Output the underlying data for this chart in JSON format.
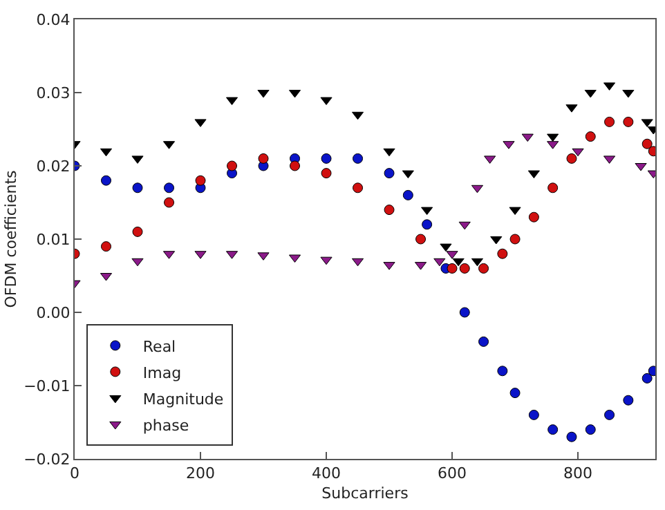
{
  "chart_data": {
    "type": "scatter",
    "xlabel": "Subcarriers",
    "ylabel": "OFDM coefficients",
    "xlim": [
      0,
      923
    ],
    "xticks": [
      0,
      200,
      400,
      600,
      800
    ],
    "ylim": [
      -0.02,
      0.04
    ],
    "yticks": [
      {
        "value": -0.02,
        "label": "−0.02"
      },
      {
        "value": -0.01,
        "label": "−0.01"
      },
      {
        "value": 0,
        "label": "0.00"
      },
      {
        "value": 0.01,
        "label": "0.01"
      },
      {
        "value": 0.02,
        "label": "0.02"
      },
      {
        "value": 0.03,
        "label": "0.03"
      },
      {
        "value": 0.04,
        "label": "0.04"
      }
    ],
    "legend": "bottom left",
    "series": [
      {
        "name": "Real",
        "color": "#0a14c8",
        "marker": "circle",
        "x": [
          0,
          50,
          100,
          150,
          200,
          250,
          300,
          350,
          400,
          450,
          500,
          530,
          560,
          590,
          620,
          650,
          680,
          700,
          730,
          760,
          790,
          820,
          850,
          880,
          910,
          920
        ],
        "values": [
          0.02,
          0.018,
          0.017,
          0.017,
          0.017,
          0.019,
          0.02,
          0.021,
          0.021,
          0.021,
          0.019,
          0.016,
          0.012,
          0.006,
          0.0,
          -0.004,
          -0.008,
          -0.011,
          -0.014,
          -0.016,
          -0.017,
          -0.016,
          -0.014,
          -0.012,
          -0.009,
          -0.008
        ]
      },
      {
        "name": "Imag",
        "color": "#d01010",
        "marker": "circle",
        "x": [
          0,
          50,
          100,
          150,
          200,
          250,
          300,
          350,
          400,
          450,
          500,
          550,
          600,
          620,
          650,
          680,
          700,
          730,
          760,
          790,
          820,
          850,
          880,
          910,
          920
        ],
        "values": [
          0.008,
          0.009,
          0.011,
          0.015,
          0.018,
          0.02,
          0.021,
          0.02,
          0.019,
          0.017,
          0.014,
          0.01,
          0.006,
          0.006,
          0.006,
          0.008,
          0.01,
          0.013,
          0.017,
          0.021,
          0.024,
          0.026,
          0.026,
          0.023,
          0.022
        ]
      },
      {
        "name": "Magnitude",
        "color": "#000000",
        "marker": "triangle",
        "x": [
          0,
          50,
          100,
          150,
          200,
          250,
          300,
          350,
          400,
          450,
          500,
          530,
          560,
          590,
          610,
          640,
          670,
          700,
          730,
          760,
          790,
          820,
          850,
          880,
          910,
          920
        ],
        "values": [
          0.023,
          0.022,
          0.021,
          0.023,
          0.026,
          0.029,
          0.03,
          0.03,
          0.029,
          0.027,
          0.022,
          0.019,
          0.014,
          0.009,
          0.007,
          0.007,
          0.01,
          0.014,
          0.019,
          0.024,
          0.028,
          0.03,
          0.031,
          0.03,
          0.026,
          0.025
        ]
      },
      {
        "name": "phase",
        "color": "#8b1a89",
        "marker": "triangle",
        "x": [
          0,
          50,
          100,
          150,
          200,
          250,
          300,
          350,
          400,
          450,
          500,
          550,
          580,
          600,
          620,
          640,
          660,
          690,
          720,
          760,
          800,
          850,
          900,
          920
        ],
        "values": [
          0.004,
          0.005,
          0.007,
          0.008,
          0.008,
          0.008,
          0.0078,
          0.0075,
          0.0072,
          0.007,
          0.0065,
          0.0065,
          0.007,
          0.008,
          0.012,
          0.017,
          0.021,
          0.023,
          0.024,
          0.023,
          0.022,
          0.021,
          0.02,
          0.019
        ]
      }
    ]
  }
}
